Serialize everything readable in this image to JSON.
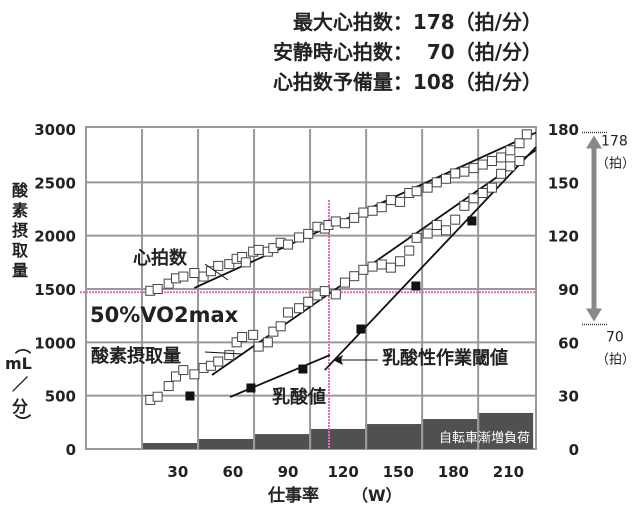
{
  "header": {
    "max_hr": "最大心拍数：178（拍/分）",
    "rest_hr": "安静時心拍数：  70（拍/分）",
    "reserve_hr": "心拍数予備量：108（拍/分）"
  },
  "chart_data": {
    "type": "scatter",
    "xlabel": "仕事率",
    "xunit": "（W）",
    "ylabel": "酸素摂取量",
    "yunit": "（mL/分）",
    "y2label": "心拍数",
    "xlim": [
      -20,
      225
    ],
    "ylim": [
      0,
      3000
    ],
    "y2lim": [
      0,
      180
    ],
    "xticks": [
      30,
      60,
      90,
      120,
      150,
      180,
      210
    ],
    "yticks": [
      0,
      500,
      1000,
      1500,
      2000,
      2500,
      3000
    ],
    "y2ticks": [
      0,
      30,
      60,
      90,
      120,
      150,
      180
    ],
    "grid": true,
    "series": [
      {
        "name": "心拍数",
        "axis": "right",
        "marker": "open-square",
        "x": [
          15,
          19,
          25,
          29,
          33,
          39,
          44,
          48,
          52,
          58,
          62,
          65,
          67,
          71,
          74,
          79,
          82,
          86,
          90,
          96,
          101,
          106,
          110,
          112,
          116,
          121,
          126,
          131,
          136,
          141,
          146,
          151,
          156,
          160,
          166,
          171,
          176,
          181,
          186,
          191,
          196,
          201,
          206,
          211,
          216,
          220
        ],
        "y": [
          89,
          90,
          93,
          96,
          97,
          99,
          97,
          100,
          103,
          104,
          107,
          108,
          105,
          111,
          112,
          111,
          113,
          116,
          115,
          119,
          121,
          125,
          124,
          126,
          128,
          127,
          130,
          133,
          134,
          136,
          140,
          139,
          144,
          145,
          147,
          150,
          152,
          155,
          156,
          158,
          160,
          162,
          164,
          168,
          172,
          177
        ]
      },
      {
        "name": "酸素摂取量",
        "axis": "left",
        "marker": "open-square",
        "x": [
          15,
          19,
          25,
          29,
          33,
          39,
          44,
          48,
          52,
          58,
          62,
          65,
          71,
          74,
          79,
          82,
          86,
          90,
          96,
          101,
          106,
          110,
          116,
          121,
          126,
          131,
          136,
          141,
          146,
          151,
          156,
          160,
          166,
          171,
          176,
          181,
          186,
          191,
          196,
          201,
          206,
          211,
          216
        ],
        "y": [
          460,
          490,
          590,
          680,
          740,
          700,
          760,
          780,
          820,
          880,
          1000,
          1050,
          1070,
          960,
          1000,
          1100,
          1150,
          1280,
          1320,
          1380,
          1440,
          1480,
          1450,
          1560,
          1620,
          1680,
          1710,
          1730,
          1700,
          1760,
          1860,
          1980,
          2020,
          2100,
          2050,
          2150,
          2280,
          2350,
          2400,
          2450,
          2580,
          2650,
          2700
        ]
      },
      {
        "name": "乳酸値",
        "axis": "left",
        "marker": "filled-square",
        "x": [
          36.6,
          69.8,
          98.1,
          129.7,
          159.6,
          190.1
        ],
        "y": [
          497,
          572,
          750,
          1125,
          1528,
          2138
        ]
      }
    ],
    "trend_lines": [
      {
        "name": "心拍数",
        "axis": "right",
        "x": [
          39,
          225
        ],
        "y": [
          90.6,
          178
        ]
      },
      {
        "name": "酸素摂取量",
        "axis": "left",
        "x": [
          48.6,
          225
        ],
        "y": [
          694,
          2803
        ]
      },
      {
        "name": "乳酸値-1",
        "axis": "left",
        "x": [
          58.4,
          112.8
        ],
        "y": [
          487,
          881
        ]
      },
      {
        "name": "乳酸値-2",
        "axis": "left",
        "x": [
          110,
          225
        ],
        "y": [
          740,
          2831
        ]
      }
    ],
    "load_steps": {
      "label": "自転車漸増負荷",
      "start": [
        10.5,
        41,
        71.5,
        102,
        132.5,
        163,
        193.5
      ],
      "end": 224,
      "values": [
        56,
        94,
        140,
        188,
        234,
        281,
        338
      ]
    },
    "reference_lines": {
      "vo2_50pct": 1470,
      "threshold_w": 112.3,
      "threshold_top": 2334,
      "color": "#ee66bb"
    },
    "annotations": {
      "vo2_50": "50%VO2max",
      "vo2_50_main": "50%VO",
      "vo2_50_sub": "2",
      "vo2_50_tail": "max",
      "hr_label": "心拍数",
      "vo2_label": "酸素摂取量",
      "lactate_label": "乳酸値",
      "threshold_label": "乳酸性作業閾値",
      "max_hr": "178",
      "rest_hr": "70",
      "beat_unit": "（拍）",
      "max_hr_value": 178,
      "rest_hr_value": 70
    }
  }
}
